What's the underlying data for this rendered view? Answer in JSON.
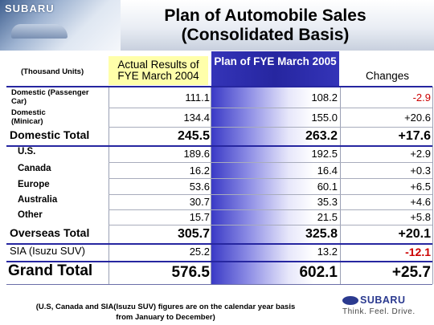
{
  "header": {
    "title_line1": "Plan of Automobile Sales",
    "title_line2": "(Consolidated Basis)",
    "photo_brand": "SUBARU"
  },
  "table": {
    "units_label": "(Thousand Units)",
    "col_actual": "Actual Results of FYE March 2004",
    "col_plan": "Plan of FYE March 2005",
    "col_changes": "Changes",
    "rows": [
      {
        "label": "Domestic (Passenger Car)",
        "actual": "111.1",
        "plan": "108.2",
        "change": "-2.9"
      },
      {
        "label": "Domestic (Minicar)",
        "actual": "134.4",
        "plan": "155.0",
        "change": "+20.6"
      },
      {
        "label": "Domestic Total",
        "actual": "245.5",
        "plan": "263.2",
        "change": "+17.6"
      },
      {
        "label": "U.S.",
        "actual": "189.6",
        "plan": "192.5",
        "change": "+2.9"
      },
      {
        "label": "Canada",
        "actual": "16.2",
        "plan": "16.4",
        "change": "+0.3"
      },
      {
        "label": "Europe",
        "actual": "53.6",
        "plan": "60.1",
        "change": "+6.5"
      },
      {
        "label": "Australia",
        "actual": "30.7",
        "plan": "35.3",
        "change": "+4.6"
      },
      {
        "label": "Other",
        "actual": "15.7",
        "plan": "21.5",
        "change": "+5.8"
      },
      {
        "label": "Overseas Total",
        "actual": "305.7",
        "plan": "325.8",
        "change": "+20.1"
      },
      {
        "label": "SIA (Isuzu SUV)",
        "actual": "25.2",
        "plan": "13.2",
        "change": "-12.1"
      },
      {
        "label": "Grand Total",
        "actual": "576.5",
        "plan": "602.1",
        "change": "+25.7"
      }
    ]
  },
  "footnote": {
    "line1": "(U.S, Canada and SIA(Isuzu SUV) figures are on the calendar year basis",
    "line2": "from January to December)"
  },
  "logo": {
    "brand": "SUBARU",
    "slogan": "Think. Feel. Drive."
  },
  "colors": {
    "plan_header_blue": "#2626a0",
    "negative_red": "#cc0000",
    "actual_header_yellow": "#ffffaa"
  }
}
